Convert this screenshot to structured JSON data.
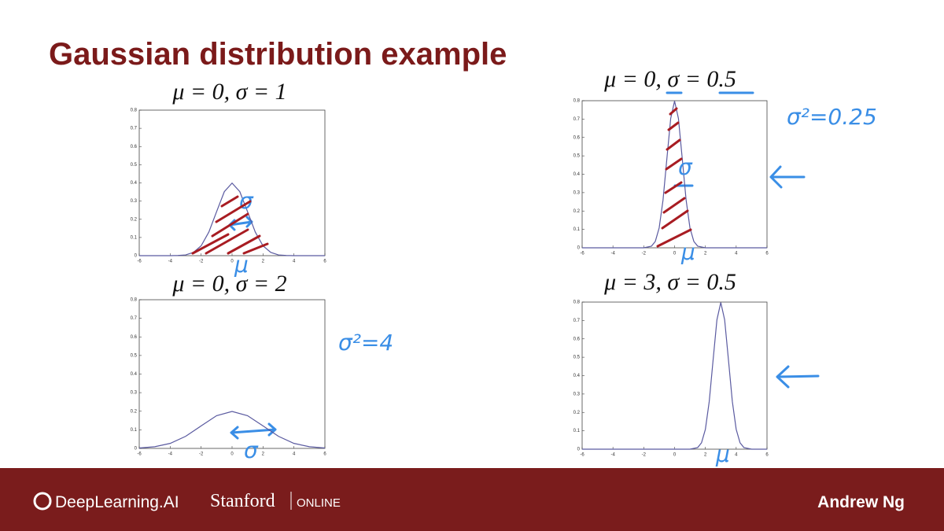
{
  "title": "Gaussian distribution example",
  "chart_data": [
    {
      "type": "line",
      "title": "μ = 0, σ = 1",
      "color": "#5a5aa0",
      "x": [
        -6,
        -4,
        -3.5,
        -3,
        -2.5,
        -2,
        -1.5,
        -1,
        -0.5,
        0,
        0.5,
        1,
        1.5,
        2,
        2.5,
        3,
        3.5,
        4,
        6
      ],
      "values": [
        0,
        0,
        0.001,
        0.004,
        0.018,
        0.054,
        0.13,
        0.242,
        0.352,
        0.399,
        0.352,
        0.242,
        0.13,
        0.054,
        0.018,
        0.004,
        0.001,
        0,
        0
      ],
      "xlim": [
        -6,
        6
      ],
      "xticks": [
        -6,
        -4,
        -2,
        0,
        2,
        4,
        6
      ],
      "ylim": [
        0,
        0.8
      ],
      "yticks": [
        0,
        0.1,
        0.2,
        0.3,
        0.4,
        0.5,
        0.6,
        0.7,
        0.8
      ],
      "annotations": [
        "σ",
        "μ"
      ]
    },
    {
      "type": "line",
      "title": "μ = 0, σ = 2",
      "color": "#5a5aa0",
      "x": [
        -6,
        -5,
        -4,
        -3,
        -2,
        -1,
        0,
        1,
        2,
        3,
        4,
        5,
        6
      ],
      "values": [
        0.002,
        0.009,
        0.027,
        0.065,
        0.121,
        0.176,
        0.199,
        0.176,
        0.121,
        0.065,
        0.027,
        0.009,
        0.002
      ],
      "xlim": [
        -6,
        6
      ],
      "xticks": [
        -6,
        -4,
        -2,
        0,
        2,
        4,
        6
      ],
      "ylim": [
        0,
        0.8
      ],
      "yticks": [
        0,
        0.1,
        0.2,
        0.3,
        0.4,
        0.5,
        0.6,
        0.7,
        0.8
      ],
      "annotations": [
        "σ²=4",
        "σ"
      ]
    },
    {
      "type": "line",
      "title": "μ = 0, σ = 0.5",
      "color": "#5a5aa0",
      "x": [
        -6,
        -2,
        -1.5,
        -1.25,
        -1,
        -0.75,
        -0.5,
        -0.25,
        0,
        0.25,
        0.5,
        0.75,
        1,
        1.25,
        1.5,
        2,
        6
      ],
      "values": [
        0,
        0,
        0.009,
        0.035,
        0.108,
        0.259,
        0.484,
        0.704,
        0.798,
        0.704,
        0.484,
        0.259,
        0.108,
        0.035,
        0.009,
        0,
        0
      ],
      "xlim": [
        -6,
        6
      ],
      "xticks": [
        -6,
        -4,
        -2,
        0,
        2,
        4,
        6
      ],
      "ylim": [
        0,
        0.8
      ],
      "yticks": [
        0,
        0.1,
        0.2,
        0.3,
        0.4,
        0.5,
        0.6,
        0.7,
        0.8
      ],
      "annotations": [
        "σ²=0.25",
        "σ",
        "μ"
      ]
    },
    {
      "type": "line",
      "title": "μ = 3, σ = 0.5",
      "color": "#5a5aa0",
      "x": [
        -6,
        1,
        1.5,
        1.75,
        2,
        2.25,
        2.5,
        2.75,
        3,
        3.25,
        3.5,
        3.75,
        4,
        4.25,
        4.5,
        5,
        6
      ],
      "values": [
        0,
        0,
        0.009,
        0.035,
        0.108,
        0.259,
        0.484,
        0.704,
        0.798,
        0.704,
        0.484,
        0.259,
        0.108,
        0.035,
        0.009,
        0,
        0
      ],
      "xlim": [
        -6,
        6
      ],
      "xticks": [
        -6,
        -4,
        -2,
        0,
        2,
        4,
        6
      ],
      "ylim": [
        0,
        0.8
      ],
      "yticks": [
        0,
        0.1,
        0.2,
        0.3,
        0.4,
        0.5,
        0.6,
        0.7,
        0.8
      ],
      "annotations": [
        "μ"
      ]
    }
  ],
  "footer": {
    "brand": "DeepLearning.AI",
    "partner": "Stanford",
    "partner_sub": "ONLINE",
    "author": "Andrew Ng"
  }
}
